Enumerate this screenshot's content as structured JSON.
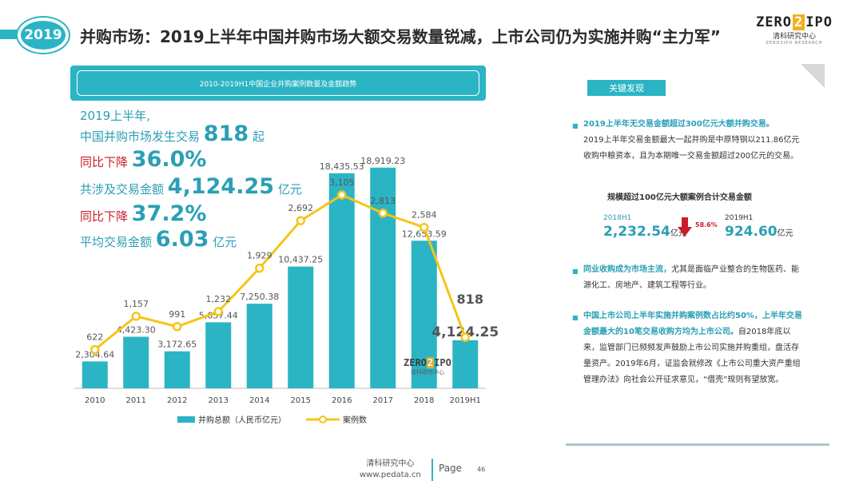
{
  "header": {
    "year_badge": "2019",
    "title": "并购市场：2019上半年中国并购市场大额交易数量锐减，上市公司仍为实施并购“主力军”",
    "logo_left": "ZERO",
    "logo_box": "2",
    "logo_right": "IPO",
    "logo_sub": "清科研究中心",
    "logo_tiny": "ZERO2IPO RESEARCH"
  },
  "chart_title": "2010-2019H1中国企业并购案例数量及金额趋势",
  "stats": {
    "line1": "2019上半年,",
    "line2_prefix": "中国并购市场发生交易",
    "line2_value": "818",
    "line2_suffix": "起",
    "line3_prefix": "同比下降",
    "line3_value": "36.0%",
    "line4_prefix": "共涉及交易金额",
    "line4_value": "4,124.25",
    "line4_suffix": "亿元",
    "line5_prefix": "同比下降",
    "line5_value": "37.2%",
    "line6_prefix": "平均交易金额",
    "line6_value": "6.03",
    "line6_suffix": "亿元"
  },
  "chart_data": {
    "type": "bar",
    "categories": [
      "2010",
      "2011",
      "2012",
      "2013",
      "2014",
      "2015",
      "2016",
      "2017",
      "2018",
      "2019H1"
    ],
    "series": [
      {
        "name": "并购总额（人民币亿元）",
        "type": "bar",
        "color": "#2bb4c4",
        "values": [
          2304.64,
          4423.3,
          3172.65,
          5657.44,
          7250.38,
          10437.25,
          18435.53,
          18919.23,
          12653.59,
          4124.25
        ],
        "labels": [
          "2,304.64",
          "4,423.30",
          "3,172.65",
          "5,657.44",
          "7,250.38",
          "10,437.25",
          "18,435.53",
          "18,919.23",
          "12,653.59",
          "4,124.25"
        ]
      },
      {
        "name": "案例数",
        "type": "line",
        "color": "#f5c518",
        "values": [
          622,
          1157,
          991,
          1232,
          1929,
          2692,
          3105,
          2813,
          2584,
          818
        ],
        "labels": [
          "622",
          "1,157",
          "991",
          "1,232",
          "1,929",
          "2,692",
          "3,105",
          "2,813",
          "2,584",
          "818"
        ]
      }
    ],
    "legend_position": "bottom"
  },
  "panel": {
    "key_label": "关键发现",
    "b1_title": "2019上半年无交易金额超过300亿元大额并购交易。",
    "b1_text": "2019上半年交易金额最大一起并购是中原特钢以211.86亿元收购中粮资本，且为本期唯一交易金额超过200亿元的交易。",
    "sub_title": "规模超过100亿元大额案例合计交易金额",
    "left_year": "2018H1",
    "left_amount": "2,232.54",
    "left_unit": "亿元",
    "change": "58.6%",
    "right_year": "2019H1",
    "right_amount": "924.60",
    "right_unit": "亿元",
    "b2_title": "同业收购成为市场主流，",
    "b2_text": "尤其是面临产业整合的生物医药、能源化工、房地产、建筑工程等行业。",
    "b3_title": "中国上市公司上半年实施并购案例数占比约50%，上半年交易金额最大的10笔交易收购方均为上市公司。",
    "b3_text": "自2018年底以来，监管部门已频频发声鼓励上市公司实施并购重组，盘活存量资产。2019年6月，证监会就修改《上市公司重大资产重组管理办法》向社会公开征求意见，“借壳”规则有望放宽。"
  },
  "footer": {
    "org": "清科研究中心",
    "url": "www.pedata.cn",
    "page_label": "Page",
    "page_num": "46"
  },
  "watermark": {
    "left": "ZERO",
    "box": "2",
    "right": "IPO",
    "sub": "清科研究中心"
  }
}
